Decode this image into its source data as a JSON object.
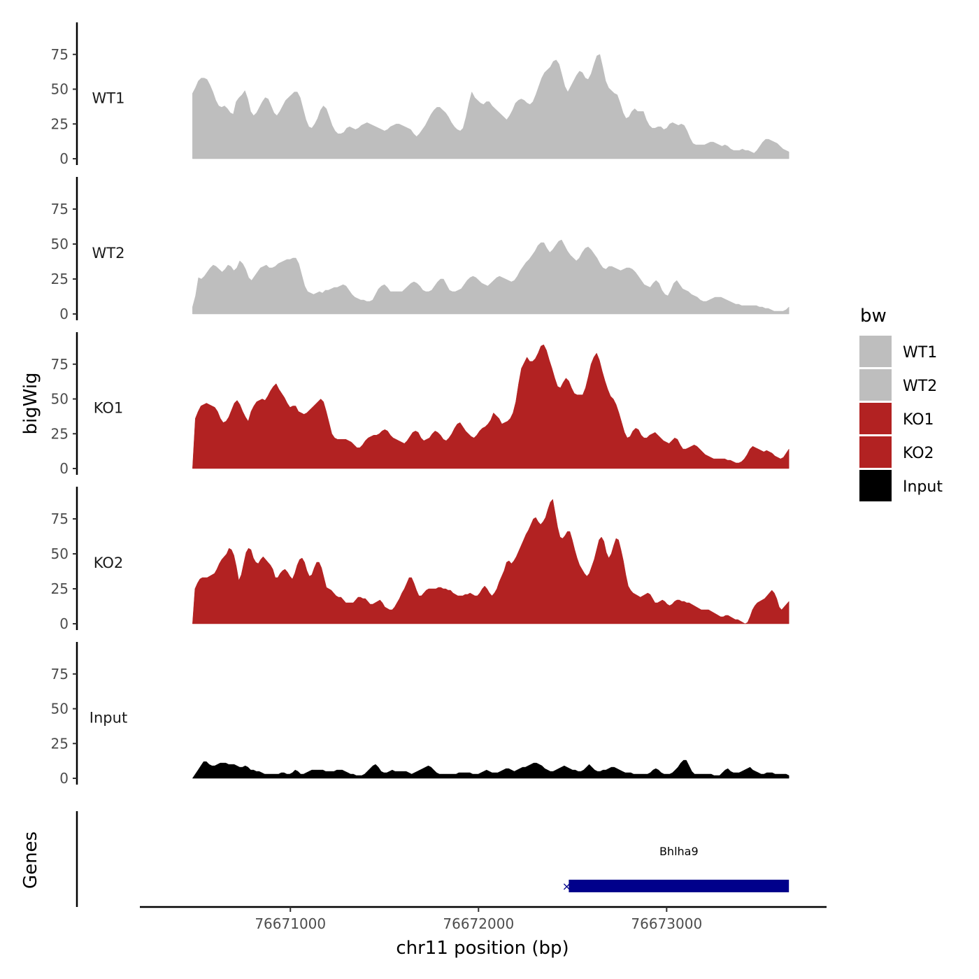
{
  "chart_data": {
    "type": "area",
    "title": "",
    "ylabel": "bigWig",
    "xlabel": "chr11 position (bp)",
    "chromosome": "chr11",
    "x_start": 76670480,
    "x_end": 76673650,
    "xlim": [
      76670200,
      76673850
    ],
    "xticks": [
      76671000,
      76672000,
      76673000
    ],
    "xtick_labels": [
      "76671000",
      "76672000",
      "76673000"
    ],
    "ylim": [
      0,
      95
    ],
    "yticks": [
      0,
      25,
      50,
      75
    ],
    "ytick_labels": [
      "0",
      "25",
      "50",
      "75"
    ],
    "series": [
      {
        "name": "WT1",
        "color": "#bebebe",
        "values": [
          47,
          51,
          56,
          58,
          58,
          57,
          53,
          48,
          42,
          38,
          37,
          38,
          36,
          33,
          32,
          41,
          44,
          46,
          49,
          43,
          34,
          31,
          33,
          37,
          41,
          44,
          43,
          38,
          33,
          31,
          34,
          38,
          42,
          44,
          46,
          48,
          48,
          44,
          36,
          28,
          23,
          22,
          25,
          29,
          35,
          38,
          36,
          30,
          24,
          20,
          18,
          18,
          19,
          22,
          23,
          22,
          21,
          22,
          24,
          25,
          26,
          25,
          24,
          23,
          22,
          21,
          20,
          21,
          23,
          24,
          25,
          25,
          24,
          23,
          22,
          21,
          18,
          16,
          18,
          21,
          24,
          28,
          32,
          35,
          37,
          37,
          35,
          33,
          30,
          26,
          23,
          21,
          20,
          22,
          30,
          40,
          48,
          44,
          42,
          40,
          39,
          41,
          41,
          38,
          36,
          34,
          32,
          30,
          28,
          31,
          35,
          40,
          42,
          43,
          42,
          40,
          39,
          41,
          46,
          52,
          58,
          62,
          64,
          66,
          70,
          71,
          68,
          60,
          52,
          48,
          52,
          56,
          60,
          63,
          62,
          58,
          57,
          61,
          68,
          74,
          75,
          66,
          56,
          51,
          49,
          47,
          46,
          40,
          33,
          29,
          30,
          34,
          36,
          34,
          34,
          34,
          28,
          24,
          22,
          22,
          23,
          23,
          21,
          22,
          25,
          26,
          25,
          24,
          25,
          24,
          20,
          15,
          11,
          10,
          10,
          10,
          10,
          11,
          12,
          12,
          11,
          10,
          9,
          10,
          9,
          7,
          6,
          6,
          6,
          7,
          6,
          6,
          5,
          4,
          6,
          9,
          12,
          14,
          14,
          13,
          12,
          11,
          9,
          7,
          6,
          5
        ],
        "label_value": 44
      },
      {
        "name": "WT2",
        "color": "#bebebe",
        "values": [
          5,
          13,
          26,
          25,
          27,
          30,
          33,
          35,
          34,
          32,
          30,
          32,
          35,
          34,
          31,
          33,
          38,
          36,
          32,
          26,
          24,
          27,
          30,
          33,
          34,
          35,
          33,
          33,
          34,
          36,
          37,
          38,
          39,
          39,
          40,
          40,
          36,
          28,
          20,
          16,
          15,
          14,
          15,
          16,
          15,
          17,
          17,
          18,
          19,
          19,
          20,
          21,
          20,
          17,
          14,
          12,
          11,
          10,
          10,
          9,
          9,
          10,
          14,
          18,
          20,
          21,
          19,
          16,
          16,
          16,
          16,
          16,
          18,
          20,
          22,
          23,
          22,
          20,
          17,
          16,
          16,
          17,
          20,
          23,
          25,
          25,
          21,
          17,
          16,
          16,
          17,
          18,
          21,
          24,
          26,
          27,
          26,
          24,
          22,
          21,
          20,
          22,
          24,
          26,
          27,
          26,
          25,
          24,
          23,
          24,
          27,
          31,
          34,
          37,
          39,
          42,
          45,
          49,
          51,
          51,
          47,
          44,
          46,
          49,
          52,
          53,
          49,
          45,
          42,
          40,
          38,
          40,
          44,
          47,
          48,
          46,
          43,
          40,
          36,
          33,
          32,
          34,
          34,
          33,
          32,
          31,
          32,
          33,
          33,
          32,
          30,
          27,
          24,
          21,
          20,
          19,
          22,
          24,
          22,
          17,
          14,
          13,
          17,
          22,
          24,
          21,
          18,
          17,
          16,
          14,
          13,
          12,
          10,
          9,
          9,
          10,
          11,
          12,
          12,
          12,
          11,
          10,
          9,
          8,
          7,
          7,
          6,
          6,
          6,
          6,
          6,
          6,
          5,
          5,
          4,
          4,
          3,
          2,
          2,
          2,
          2,
          3,
          5
        ],
        "label_value": 44
      },
      {
        "name": "KO1",
        "color": "#b22222",
        "values": [
          0,
          36,
          41,
          45,
          46,
          47,
          46,
          45,
          44,
          41,
          36,
          33,
          34,
          37,
          42,
          47,
          49,
          46,
          41,
          37,
          34,
          41,
          45,
          48,
          49,
          50,
          49,
          52,
          56,
          59,
          61,
          57,
          54,
          51,
          47,
          44,
          45,
          45,
          41,
          40,
          39,
          40,
          42,
          44,
          46,
          48,
          50,
          48,
          41,
          33,
          25,
          22,
          21,
          21,
          21,
          21,
          20,
          19,
          17,
          15,
          15,
          17,
          20,
          22,
          23,
          24,
          24,
          25,
          27,
          28,
          27,
          24,
          22,
          21,
          20,
          19,
          18,
          20,
          23,
          26,
          27,
          26,
          22,
          20,
          21,
          22,
          25,
          27,
          26,
          24,
          21,
          20,
          22,
          25,
          29,
          32,
          33,
          30,
          27,
          25,
          23,
          22,
          24,
          27,
          29,
          30,
          32,
          35,
          40,
          38,
          36,
          32,
          33,
          34,
          36,
          40,
          48,
          61,
          72,
          76,
          80,
          77,
          77,
          79,
          83,
          88,
          89,
          85,
          78,
          72,
          65,
          59,
          58,
          62,
          65,
          63,
          58,
          54,
          53,
          53,
          53,
          58,
          66,
          75,
          80,
          83,
          78,
          70,
          63,
          57,
          52,
          50,
          46,
          40,
          33,
          26,
          22,
          23,
          27,
          29,
          28,
          24,
          22,
          22,
          24,
          25,
          26,
          24,
          22,
          20,
          19,
          18,
          20,
          22,
          21,
          17,
          14,
          14,
          15,
          16,
          17,
          16,
          14,
          12,
          10,
          9,
          8,
          7,
          7,
          7,
          7,
          7,
          6,
          6,
          5,
          4,
          4,
          5,
          7,
          10,
          14,
          16,
          15,
          14,
          13,
          12,
          13,
          12,
          11,
          9,
          8,
          7,
          8,
          11,
          14
        ],
        "label_value": 44
      },
      {
        "name": "KO2",
        "color": "#b22222",
        "values": [
          0,
          25,
          29,
          32,
          33,
          33,
          33,
          34,
          35,
          36,
          39,
          43,
          46,
          48,
          50,
          54,
          53,
          49,
          41,
          31,
          35,
          43,
          51,
          54,
          53,
          47,
          44,
          43,
          46,
          48,
          46,
          44,
          42,
          39,
          33,
          33,
          36,
          38,
          39,
          37,
          34,
          32,
          36,
          42,
          46,
          47,
          44,
          38,
          34,
          35,
          40,
          44,
          44,
          40,
          33,
          26,
          25,
          24,
          22,
          20,
          19,
          19,
          17,
          15,
          15,
          15,
          15,
          17,
          19,
          19,
          18,
          18,
          16,
          14,
          14,
          15,
          16,
          17,
          15,
          12,
          11,
          10,
          10,
          12,
          15,
          18,
          22,
          25,
          29,
          33,
          33,
          29,
          24,
          20,
          20,
          22,
          24,
          25,
          25,
          25,
          25,
          26,
          26,
          25,
          25,
          24,
          24,
          22,
          21,
          20,
          20,
          20,
          21,
          21,
          22,
          21,
          20,
          20,
          22,
          25,
          27,
          25,
          22,
          20,
          22,
          25,
          30,
          34,
          38,
          44,
          45,
          43,
          45,
          48,
          52,
          56,
          60,
          64,
          67,
          71,
          75,
          76,
          73,
          71,
          73,
          76,
          82,
          87,
          89,
          79,
          69,
          62,
          61,
          63,
          66,
          66,
          60,
          53,
          47,
          42,
          39,
          36,
          34,
          36,
          41,
          46,
          53,
          60,
          62,
          59,
          51,
          47,
          50,
          56,
          61,
          60,
          53,
          45,
          35,
          27,
          24,
          22,
          21,
          20,
          19,
          20,
          21,
          22,
          21,
          18,
          15,
          15,
          16,
          17,
          16,
          14,
          13,
          14,
          16,
          17,
          17,
          16,
          16,
          15,
          15,
          14,
          13,
          12,
          11,
          10,
          10,
          10,
          10,
          9,
          8,
          7,
          6,
          5,
          5,
          6,
          6,
          5,
          4,
          3,
          3,
          2,
          1,
          0,
          1,
          5,
          10,
          13,
          15,
          16,
          17,
          18,
          20,
          22,
          24,
          22,
          18,
          12,
          10,
          12,
          14,
          16
        ],
        "label_value": 44
      },
      {
        "name": "Input",
        "color": "#000000",
        "values": [
          0,
          3,
          6,
          9,
          12,
          12,
          10,
          9,
          9,
          10,
          11,
          11,
          11,
          10,
          10,
          10,
          9,
          8,
          8,
          9,
          8,
          6,
          6,
          5,
          5,
          4,
          3,
          3,
          3,
          3,
          3,
          3,
          4,
          4,
          3,
          3,
          4,
          6,
          5,
          3,
          3,
          4,
          5,
          6,
          6,
          6,
          6,
          6,
          5,
          5,
          5,
          5,
          6,
          6,
          6,
          5,
          4,
          3,
          3,
          2,
          2,
          2,
          3,
          5,
          7,
          9,
          10,
          8,
          5,
          4,
          4,
          5,
          6,
          5,
          5,
          5,
          5,
          5,
          4,
          3,
          4,
          5,
          6,
          7,
          8,
          9,
          8,
          6,
          4,
          3,
          3,
          3,
          3,
          3,
          3,
          3,
          4,
          4,
          4,
          4,
          4,
          3,
          3,
          3,
          4,
          5,
          6,
          5,
          4,
          4,
          4,
          5,
          6,
          7,
          7,
          6,
          5,
          6,
          7,
          8,
          8,
          9,
          10,
          11,
          11,
          10,
          9,
          7,
          6,
          5,
          5,
          6,
          7,
          8,
          9,
          8,
          7,
          6,
          6,
          5,
          5,
          6,
          8,
          10,
          8,
          6,
          5,
          5,
          6,
          6,
          7,
          8,
          8,
          7,
          6,
          5,
          4,
          4,
          4,
          3,
          3,
          3,
          3,
          3,
          3,
          4,
          6,
          7,
          6,
          4,
          3,
          3,
          3,
          4,
          6,
          8,
          11,
          13,
          13,
          9,
          5,
          3,
          3,
          3,
          3,
          3,
          3,
          3,
          2,
          2,
          2,
          4,
          6,
          7,
          5,
          4,
          4,
          4,
          5,
          6,
          7,
          8,
          6,
          5,
          4,
          3,
          3,
          4,
          4,
          4,
          3,
          3,
          3,
          3,
          3,
          2
        ],
        "label_value": 44
      }
    ],
    "legend": {
      "title": "bw",
      "position": "right",
      "entries": [
        {
          "label": "WT1",
          "color": "#bebebe"
        },
        {
          "label": "WT2",
          "color": "#bebebe"
        },
        {
          "label": "KO1",
          "color": "#b22222"
        },
        {
          "label": "KO2",
          "color": "#b22222"
        },
        {
          "label": "Input",
          "color": "#000000"
        }
      ]
    },
    "genes_track": {
      "ylabel": "Genes",
      "genes": [
        {
          "name": "Bhlha9",
          "start": 76672480,
          "end": 76673650,
          "color": "#00008b"
        }
      ]
    }
  }
}
